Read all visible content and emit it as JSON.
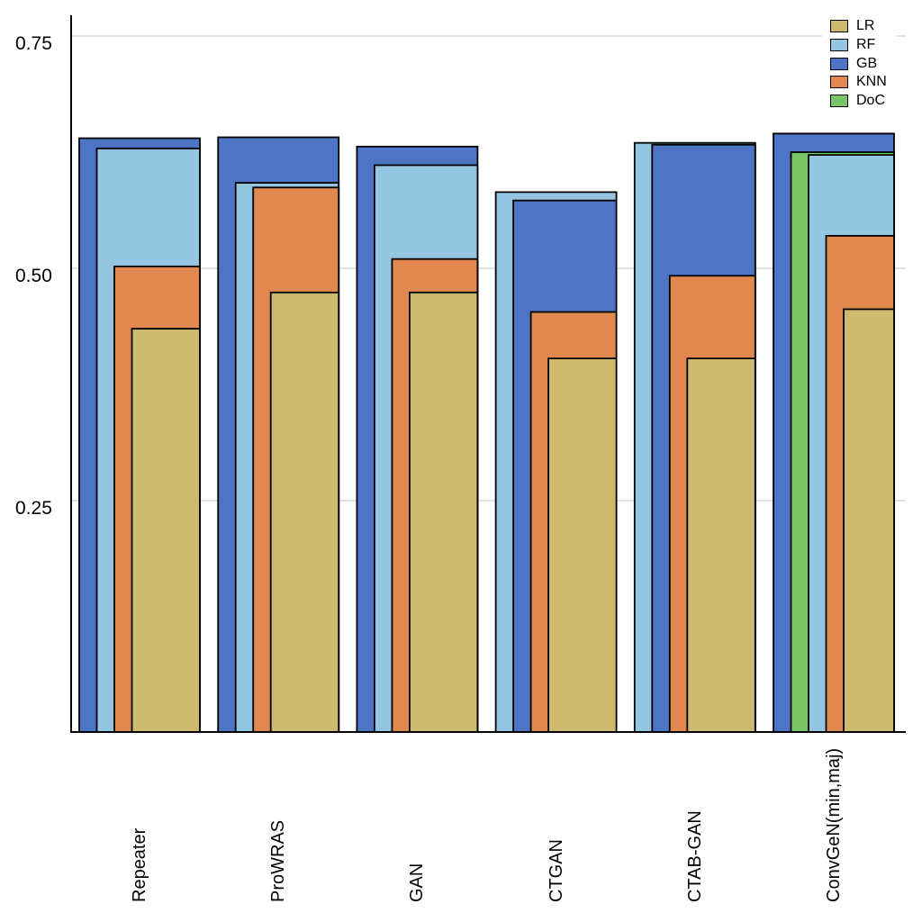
{
  "chart_data": {
    "type": "bar",
    "style": "nested-overlapping-bars",
    "title": "",
    "xlabel": "",
    "ylabel": "",
    "categories": [
      "Repeater",
      "ProWRAS",
      "GAN",
      "CTGAN",
      "CTAB-GAN",
      "ConvGeN(min,maj)"
    ],
    "series": [
      {
        "name": "LR",
        "color": "#cdba6e",
        "values": [
          0.435,
          0.474,
          0.474,
          0.403,
          0.403,
          0.456
        ]
      },
      {
        "name": "RF",
        "color": "#94c6e1",
        "values": [
          0.629,
          0.592,
          0.611,
          0.582,
          0.635,
          0.622
        ]
      },
      {
        "name": "GB",
        "color": "#4e74c6",
        "values": [
          0.64,
          0.641,
          0.631,
          0.573,
          0.633,
          0.645
        ]
      },
      {
        "name": "KNN",
        "color": "#e08850",
        "values": [
          0.502,
          0.587,
          0.51,
          0.453,
          0.492,
          0.535
        ]
      },
      {
        "name": "DoC",
        "color": "#79c465",
        "values": [
          null,
          null,
          null,
          null,
          null,
          0.625
        ]
      }
    ],
    "ytick_labels": [
      "0.25",
      "0.50",
      "0.75"
    ],
    "ytick_values": [
      0.25,
      0.5,
      0.75
    ],
    "ylim": [
      0,
      0.771
    ],
    "grid": "horizontal",
    "gridline_color": "#d9d9d9",
    "axis_color": "#000000",
    "bar_outline_color": "#000000",
    "legend_position": "top-right",
    "legend": [
      "LR",
      "RF",
      "GB",
      "KNN",
      "DoC"
    ]
  }
}
